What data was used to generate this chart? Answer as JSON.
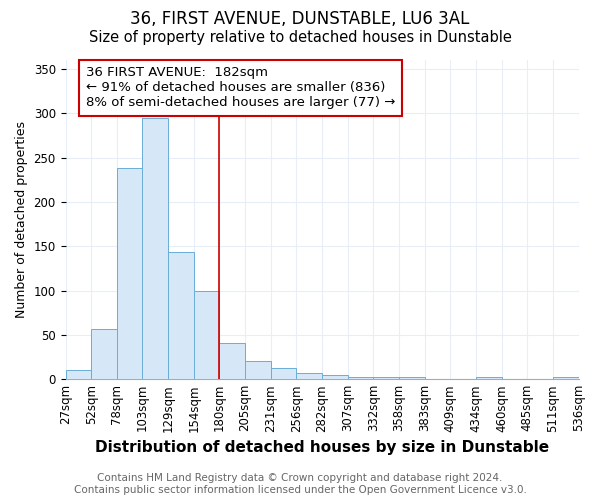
{
  "title": "36, FIRST AVENUE, DUNSTABLE, LU6 3AL",
  "subtitle": "Size of property relative to detached houses in Dunstable",
  "xlabel": "Distribution of detached houses by size in Dunstable",
  "ylabel": "Number of detached properties",
  "bar_values": [
    10,
    57,
    238,
    295,
    143,
    100,
    41,
    21,
    13,
    7,
    5,
    3,
    3,
    3,
    0,
    0,
    2,
    0,
    0,
    2
  ],
  "bar_labels": [
    "27sqm",
    "52sqm",
    "78sqm",
    "103sqm",
    "129sqm",
    "154sqm",
    "180sqm",
    "205sqm",
    "231sqm",
    "256sqm",
    "282sqm",
    "307sqm",
    "332sqm",
    "358sqm",
    "383sqm",
    "409sqm",
    "434sqm",
    "460sqm",
    "485sqm",
    "511sqm",
    "536sqm"
  ],
  "n_bars": 20,
  "bar_color": "#d6e8f7",
  "bar_edgecolor": "#6aadd5",
  "vline_color": "#cc0000",
  "annotation_text": "36 FIRST AVENUE:  182sqm\n← 91% of detached houses are smaller (836)\n8% of semi-detached houses are larger (77) →",
  "annotation_box_edgecolor": "#cc0000",
  "annotation_box_facecolor": "#ffffff",
  "ylim": [
    0,
    360
  ],
  "yticks": [
    0,
    50,
    100,
    150,
    200,
    250,
    300,
    350
  ],
  "background_color": "#ffffff",
  "axes_background": "#ffffff",
  "grid_color": "#e8eef8",
  "footer_text": "Contains HM Land Registry data © Crown copyright and database right 2024.\nContains public sector information licensed under the Open Government Licence v3.0.",
  "title_fontsize": 12,
  "subtitle_fontsize": 10.5,
  "xlabel_fontsize": 11,
  "ylabel_fontsize": 9,
  "tick_fontsize": 8.5,
  "annotation_fontsize": 9.5,
  "footer_fontsize": 7.5
}
